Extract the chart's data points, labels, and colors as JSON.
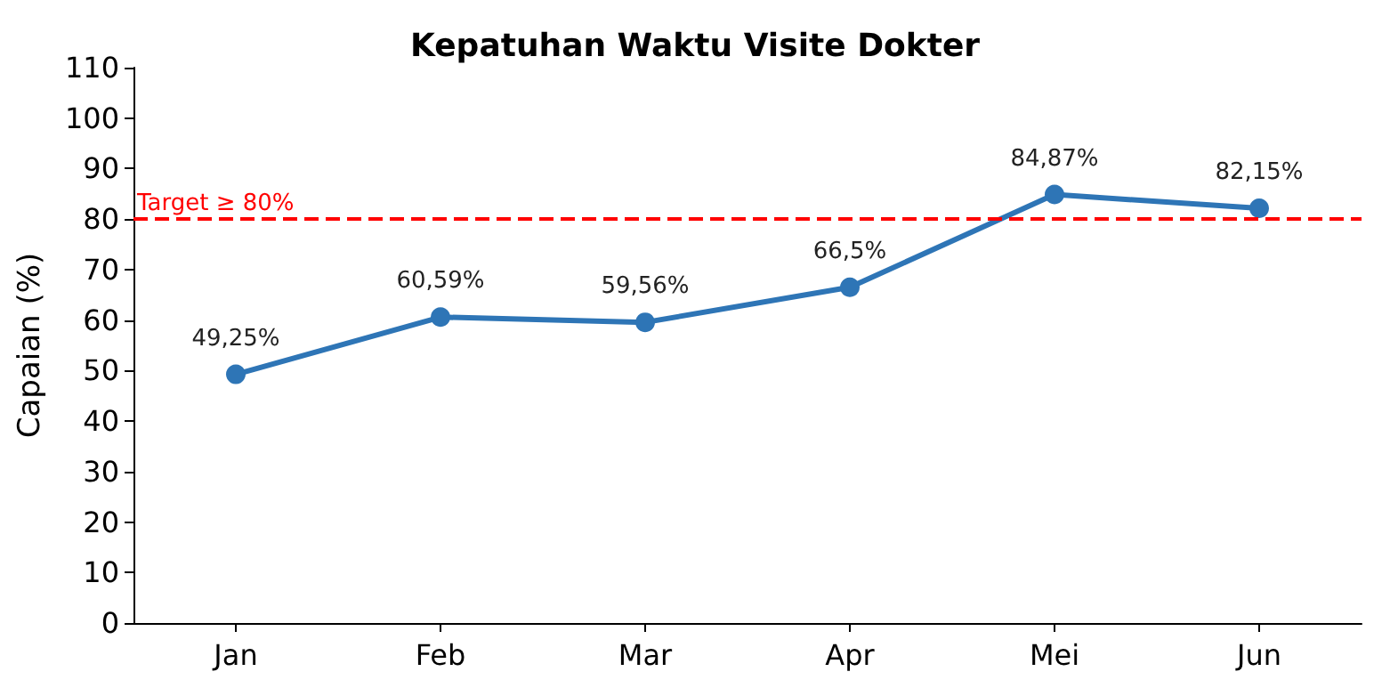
{
  "chart_data": {
    "type": "line",
    "title": "Kepatuhan Waktu Visite Dokter",
    "ylabel": "Capaian (%)",
    "categories": [
      "Jan",
      "Feb",
      "Mar",
      "Apr",
      "Mei",
      "Jun"
    ],
    "series": [
      {
        "color": "#2e75b6",
        "values": [
          49.25,
          60.59,
          59.56,
          66.5,
          84.87,
          82.15
        ],
        "value_labels": [
          "49,25%",
          "60,59%",
          "59,56%",
          "66,5%",
          "84,87%",
          "82,15%"
        ]
      }
    ],
    "ylim": [
      0,
      110
    ],
    "yticks": [
      0,
      10,
      20,
      30,
      40,
      50,
      60,
      70,
      80,
      90,
      100,
      110
    ],
    "ref_lines": [
      {
        "axis": "y",
        "value": 80,
        "label": "Target ≥ 80%",
        "color": "#ff0000",
        "line_style": "dashed"
      }
    ],
    "grid": false,
    "marker": "circle",
    "line_style": "solid"
  }
}
